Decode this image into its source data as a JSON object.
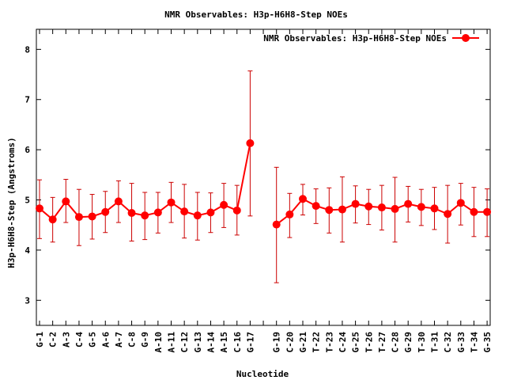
{
  "chart_data": {
    "type": "line",
    "title": "NMR Observables: H3p-H6H8-Step NOEs",
    "xlabel": "Nucleotide",
    "ylabel": "H3p-H6H8-Step (Angstroms)",
    "ylim": [
      2.5,
      8.4
    ],
    "yticks": [
      3,
      4,
      5,
      6,
      7,
      8
    ],
    "legend_position": "top-right",
    "grid": false,
    "error_bars": true,
    "colors": {
      "series": "#ff0000",
      "errorbar": "#cc0000",
      "axis": "#000000"
    },
    "categories": [
      "G-1",
      "C-2",
      "A-3",
      "C-4",
      "G-5",
      "A-6",
      "A-7",
      "C-8",
      "G-9",
      "A-10",
      "A-11",
      "C-12",
      "G-13",
      "A-14",
      "A-15",
      "C-16",
      "G-17",
      "",
      "G-19",
      "C-20",
      "G-21",
      "T-22",
      "T-23",
      "C-24",
      "G-25",
      "T-26",
      "T-27",
      "C-28",
      "G-29",
      "T-30",
      "T-31",
      "C-32",
      "G-33",
      "T-34",
      "G-35"
    ],
    "series": [
      {
        "name": "NMR Observables: H3p-H6H8-Step NOEs",
        "values": [
          4.83,
          4.61,
          4.97,
          4.66,
          4.67,
          4.76,
          4.97,
          4.74,
          4.69,
          4.75,
          4.95,
          4.77,
          4.69,
          4.75,
          4.9,
          4.79,
          6.13,
          null,
          4.51,
          4.71,
          5.02,
          4.88,
          4.8,
          4.81,
          4.92,
          4.87,
          4.85,
          4.82,
          4.92,
          4.86,
          4.83,
          4.72,
          4.94,
          4.76,
          4.76
        ],
        "err_low": [
          4.23,
          4.16,
          4.55,
          4.09,
          4.22,
          4.35,
          4.55,
          4.18,
          4.21,
          4.34,
          4.55,
          4.24,
          4.2,
          4.35,
          4.45,
          4.3,
          4.68,
          null,
          3.35,
          4.25,
          4.7,
          4.53,
          4.34,
          4.16,
          4.54,
          4.51,
          4.4,
          4.16,
          4.56,
          4.49,
          4.41,
          4.14,
          4.5,
          4.27,
          4.27
        ],
        "err_high": [
          5.4,
          5.05,
          5.41,
          5.21,
          5.11,
          5.17,
          5.38,
          5.33,
          5.15,
          5.15,
          5.35,
          5.31,
          5.15,
          5.14,
          5.33,
          5.29,
          7.57,
          null,
          5.65,
          5.13,
          5.31,
          5.22,
          5.24,
          5.46,
          5.28,
          5.21,
          5.29,
          5.45,
          5.27,
          5.21,
          5.25,
          5.29,
          5.33,
          5.25,
          5.22
        ]
      }
    ]
  }
}
